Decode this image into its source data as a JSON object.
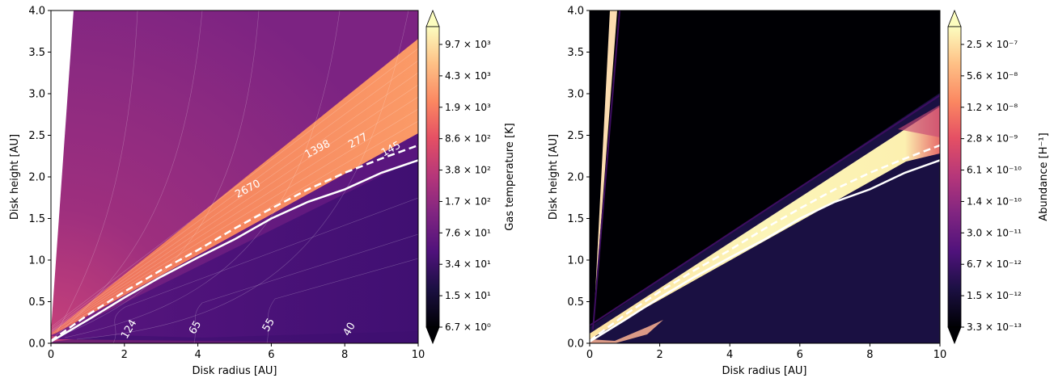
{
  "chart_data": [
    {
      "type": "contour",
      "xlabel": "Disk radius [AU]",
      "ylabel": "Disk height [AU]",
      "xlim": [
        0,
        10
      ],
      "ylim": [
        0,
        4.0
      ],
      "xticks": [
        "0",
        "2",
        "4",
        "6",
        "8",
        "10"
      ],
      "yticks": [
        "0.0",
        "0.5",
        "1.0",
        "1.5",
        "2.0",
        "2.5",
        "3.0",
        "3.5",
        "4.0"
      ],
      "colorbar": {
        "label": "Gas temperature [K]",
        "scale": "log",
        "colormap": "magma",
        "ticks": [
          "6.7 × 10⁰",
          "1.5 × 10¹",
          "3.4 × 10¹",
          "7.6 × 10¹",
          "1.7 × 10²",
          "3.8 × 10²",
          "8.6 × 10²",
          "1.9 × 10³",
          "4.3 × 10³",
          "9.7 × 10³"
        ]
      },
      "contour_labels": [
        {
          "text": "2670",
          "x": 5.4,
          "y": 1.82
        },
        {
          "text": "1398",
          "x": 7.3,
          "y": 2.3
        },
        {
          "text": "277",
          "x": 8.4,
          "y": 2.4
        },
        {
          "text": "145",
          "x": 9.3,
          "y": 2.3
        },
        {
          "text": "124",
          "x": 2.2,
          "y": 0.15
        },
        {
          "text": "65",
          "x": 4.0,
          "y": 0.17
        },
        {
          "text": "55",
          "x": 6.0,
          "y": 0.2
        },
        {
          "text": "40",
          "x": 8.2,
          "y": 0.15
        }
      ],
      "solid_line": {
        "x": [
          0,
          1,
          2,
          3,
          4,
          5,
          6,
          7,
          8,
          9,
          10
        ],
        "y": [
          0.02,
          0.28,
          0.55,
          0.8,
          1.03,
          1.25,
          1.5,
          1.7,
          1.85,
          2.05,
          2.2
        ]
      },
      "dashed_line": {
        "x": [
          0,
          1,
          2,
          3,
          4,
          5,
          6,
          7,
          8,
          9,
          10
        ],
        "y": [
          0.03,
          0.34,
          0.62,
          0.88,
          1.12,
          1.38,
          1.62,
          1.85,
          2.05,
          2.22,
          2.38
        ]
      }
    },
    {
      "type": "contour",
      "xlabel": "Disk radius [AU]",
      "ylabel": "Disk height [AU]",
      "xlim": [
        0,
        10
      ],
      "ylim": [
        0,
        4.0
      ],
      "xticks": [
        "0",
        "2",
        "4",
        "6",
        "8",
        "10"
      ],
      "yticks": [
        "0.0",
        "0.5",
        "1.0",
        "1.5",
        "2.0",
        "2.5",
        "3.0",
        "3.5",
        "4.0"
      ],
      "colorbar": {
        "label": "Abundance [H⁻¹]",
        "scale": "log",
        "colormap": "magma",
        "ticks": [
          "3.3 × 10⁻¹³",
          "1.5 × 10⁻¹²",
          "6.7 × 10⁻¹²",
          "3.0 × 10⁻¹¹",
          "1.4 × 10⁻¹⁰",
          "6.1 × 10⁻¹⁰",
          "2.8 × 10⁻⁹",
          "1.2 × 10⁻⁸",
          "5.6 × 10⁻⁸",
          "2.5 × 10⁻⁷"
        ]
      },
      "solid_line": {
        "x": [
          0,
          1,
          2,
          3,
          4,
          5,
          6,
          7,
          8,
          9,
          10
        ],
        "y": [
          0.02,
          0.28,
          0.55,
          0.8,
          1.03,
          1.25,
          1.5,
          1.7,
          1.85,
          2.05,
          2.2
        ]
      },
      "dashed_line": {
        "x": [
          0,
          1,
          2,
          3,
          4,
          5,
          6,
          7,
          8,
          9,
          10
        ],
        "y": [
          0.03,
          0.34,
          0.62,
          0.88,
          1.12,
          1.38,
          1.62,
          1.85,
          2.05,
          2.22,
          2.38
        ]
      }
    }
  ]
}
